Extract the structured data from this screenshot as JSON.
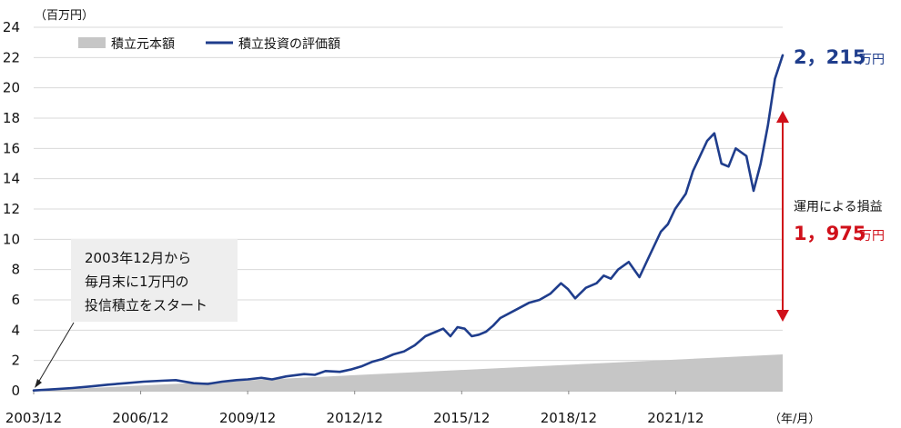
{
  "chart_data": {
    "type": "area",
    "ylabel": "（百万円）",
    "xlabel": "（年/月）",
    "ylim": [
      0,
      24
    ],
    "yticks": [
      0,
      2,
      4,
      6,
      8,
      10,
      12,
      14,
      16,
      18,
      20,
      22,
      24
    ],
    "x_range": [
      2003.917,
      2024.917
    ],
    "xticks": [
      {
        "label": "2003/12",
        "value": 2003.917
      },
      {
        "label": "2006/12",
        "value": 2006.917
      },
      {
        "label": "2009/12",
        "value": 2009.917
      },
      {
        "label": "2012/12",
        "value": 2012.917
      },
      {
        "label": "2015/12",
        "value": 2015.917
      },
      {
        "label": "2018/12",
        "value": 2018.917
      },
      {
        "label": "2021/12",
        "value": 2021.917
      }
    ],
    "grid": true,
    "legend_position": "top-left",
    "series": [
      {
        "name": "積立元本額",
        "type": "area",
        "color": "#c6c6c6",
        "x": [
          2003.917,
          2024.917
        ],
        "values": [
          0.0,
          2.4
        ]
      },
      {
        "name": "積立投資の評価額",
        "type": "line",
        "color": "#1f3d8c",
        "x": [
          2003.917,
          2004.5,
          2005.0,
          2005.5,
          2006.0,
          2006.5,
          2007.0,
          2007.5,
          2007.9,
          2008.4,
          2008.8,
          2009.2,
          2009.6,
          2009.917,
          2010.3,
          2010.6,
          2011.0,
          2011.5,
          2011.8,
          2012.1,
          2012.5,
          2012.8,
          2013.1,
          2013.4,
          2013.7,
          2014.0,
          2014.3,
          2014.6,
          2014.9,
          2015.2,
          2015.4,
          2015.6,
          2015.8,
          2016.0,
          2016.2,
          2016.4,
          2016.6,
          2016.8,
          2017.0,
          2017.4,
          2017.8,
          2018.1,
          2018.4,
          2018.7,
          2018.9,
          2019.1,
          2019.4,
          2019.7,
          2019.9,
          2020.1,
          2020.3,
          2020.6,
          2020.9,
          2021.2,
          2021.5,
          2021.7,
          2021.9,
          2022.2,
          2022.4,
          2022.6,
          2022.8,
          2023.0,
          2023.2,
          2023.4,
          2023.6,
          2023.9,
          2024.1,
          2024.3,
          2024.5,
          2024.7,
          2024.917
        ],
        "values": [
          0.02,
          0.1,
          0.18,
          0.28,
          0.4,
          0.5,
          0.6,
          0.66,
          0.7,
          0.5,
          0.45,
          0.6,
          0.7,
          0.75,
          0.85,
          0.75,
          0.95,
          1.1,
          1.05,
          1.3,
          1.25,
          1.4,
          1.6,
          1.9,
          2.1,
          2.4,
          2.6,
          3.0,
          3.6,
          3.9,
          4.1,
          3.6,
          4.2,
          4.1,
          3.6,
          3.7,
          3.9,
          4.3,
          4.8,
          5.3,
          5.8,
          6.0,
          6.4,
          7.1,
          6.7,
          6.1,
          6.8,
          7.1,
          7.6,
          7.4,
          8.0,
          8.5,
          7.5,
          9.0,
          10.5,
          11.0,
          12.0,
          13.0,
          14.5,
          15.5,
          16.5,
          17.0,
          15.0,
          14.8,
          16.0,
          15.5,
          13.2,
          15.0,
          17.5,
          20.6,
          22.15
        ]
      }
    ],
    "annotations": {
      "start_note": [
        "2003年12月から",
        "毎月末に1万円の",
        "投信積立をスタート"
      ],
      "end_value_number": "2，215",
      "end_value_unit": "万円",
      "gain_title": "運用による損益",
      "gain_number": "1，975",
      "gain_unit": "万円"
    }
  },
  "colors": {
    "line": "#1f3d8c",
    "area": "#c6c6c6",
    "arrow": "#d0101a",
    "callout_bg": "#eeeeee",
    "grid": "#d9d9d9"
  }
}
